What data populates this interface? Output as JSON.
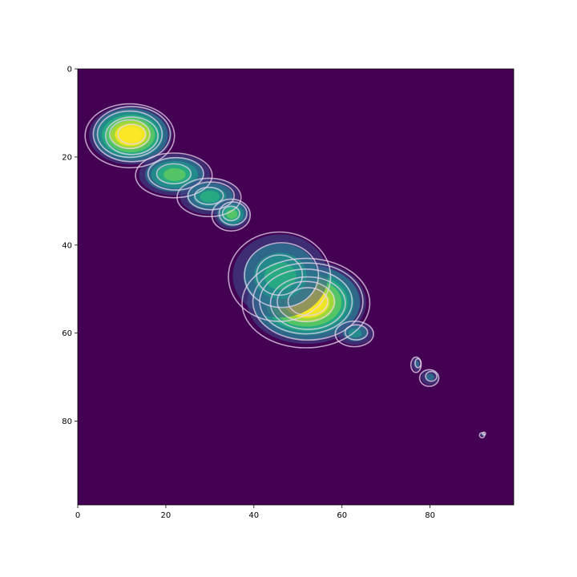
{
  "chart_data": {
    "type": "heatmap",
    "title": "",
    "xlabel": "",
    "ylabel": "",
    "xlim": [
      0,
      99
    ],
    "ylim": [
      99,
      0
    ],
    "x_ticks": [
      0,
      20,
      40,
      60,
      80
    ],
    "y_ticks": [
      0,
      20,
      40,
      60,
      80
    ],
    "colormap": "viridis",
    "background_color": "#440154",
    "contour_color": "#e6d6ec",
    "grid": false,
    "blobs": [
      {
        "name": "northwest-peak",
        "cx": 12,
        "cy": 15,
        "rx": 7,
        "ry": 5,
        "intensity": 0.95
      },
      {
        "name": "northwest-ridge",
        "cx": 22,
        "cy": 24,
        "rx": 6,
        "ry": 3.5,
        "intensity": 0.5
      },
      {
        "name": "middle-ridge",
        "cx": 30,
        "cy": 29,
        "rx": 5,
        "ry": 3,
        "intensity": 0.45
      },
      {
        "name": "middle-spot",
        "cx": 35,
        "cy": 33,
        "rx": 3,
        "ry": 2.5,
        "intensity": 0.55
      },
      {
        "name": "central-peak",
        "cx": 52,
        "cy": 53,
        "rx": 10,
        "ry": 7,
        "intensity": 1.0
      },
      {
        "name": "central-shoulder",
        "cx": 46,
        "cy": 47,
        "rx": 8,
        "ry": 7,
        "intensity": 0.45
      },
      {
        "name": "southeast-lobe",
        "cx": 63,
        "cy": 60,
        "rx": 3,
        "ry": 2,
        "intensity": 0.35
      },
      {
        "name": "islet-1",
        "cx": 77,
        "cy": 67,
        "rx": 0.8,
        "ry": 1.2,
        "intensity": 0.1
      },
      {
        "name": "islet-2",
        "cx": 80,
        "cy": 70,
        "rx": 1.5,
        "ry": 1.3,
        "intensity": 0.1
      },
      {
        "name": "islet-3",
        "cx": 92,
        "cy": 83,
        "rx": 0.4,
        "ry": 0.4,
        "intensity": 0.05
      }
    ]
  }
}
